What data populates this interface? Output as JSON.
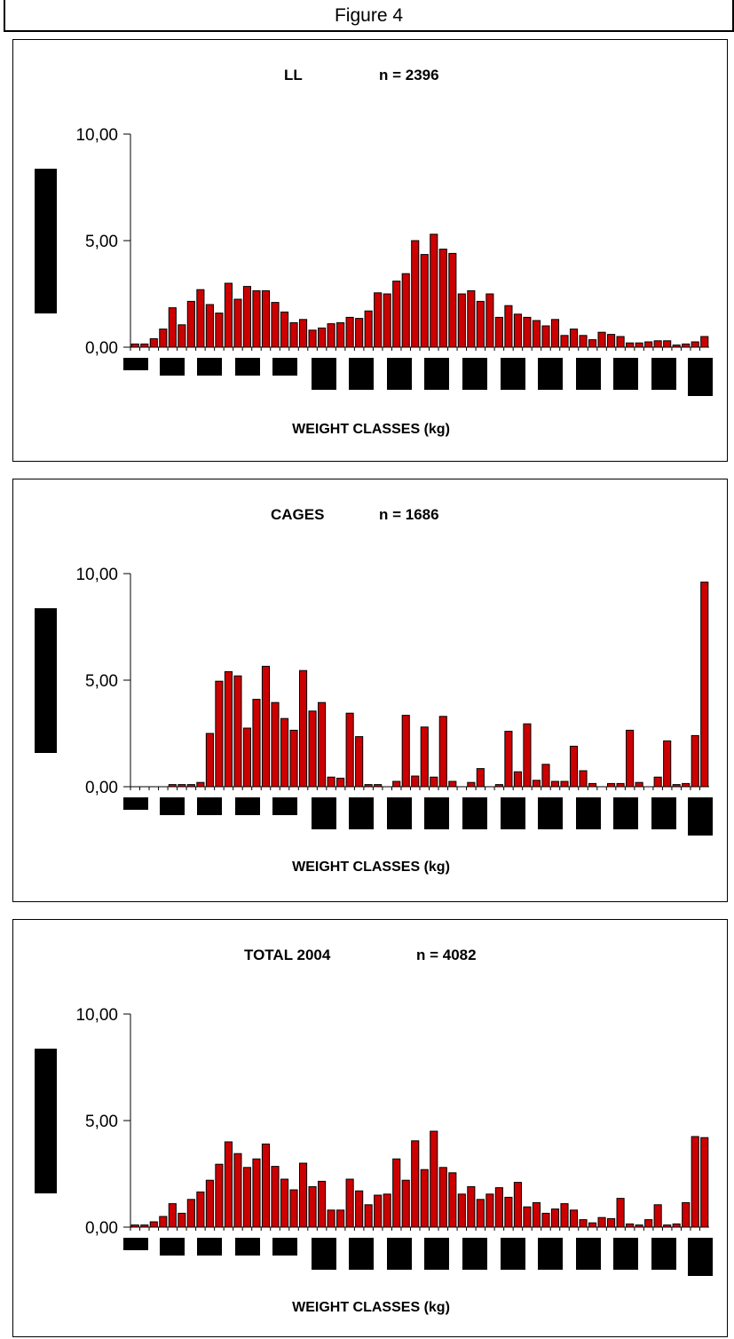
{
  "figure_title": "Figure 4",
  "colors": {
    "bar_fill": "#cc0000",
    "bar_stroke": "#000000",
    "redaction": "#000000"
  },
  "chart_data": [
    {
      "type": "bar",
      "title": "LL",
      "subtitle": "n = 2396",
      "xlabel": "WEIGHT CLASSES (kg)",
      "ylabel": "",
      "ylim": [
        0,
        10
      ],
      "yticks": [
        "10,00",
        "5,00",
        "0,00"
      ],
      "grid": false,
      "values": [
        0.15,
        0.15,
        0.4,
        0.85,
        1.85,
        1.05,
        2.15,
        2.7,
        2.0,
        1.6,
        3.0,
        2.25,
        2.85,
        2.65,
        2.65,
        2.1,
        1.65,
        1.15,
        1.3,
        0.8,
        0.9,
        1.1,
        1.15,
        1.4,
        1.35,
        1.7,
        2.55,
        2.5,
        3.1,
        3.45,
        5.0,
        4.35,
        5.3,
        4.6,
        4.4,
        2.5,
        2.65,
        2.15,
        2.5,
        1.4,
        1.95,
        1.55,
        1.4,
        1.25,
        1.0,
        1.3,
        0.55,
        0.85,
        0.55,
        0.35,
        0.7,
        0.6,
        0.5,
        0.2,
        0.2,
        0.25,
        0.3,
        0.3,
        0.1,
        0.15,
        0.25,
        0.5
      ]
    },
    {
      "type": "bar",
      "title": "CAGES",
      "subtitle": "n = 1686",
      "xlabel": "WEIGHT CLASSES (kg)",
      "ylabel": "",
      "ylim": [
        0,
        10
      ],
      "yticks": [
        "10,00",
        "5,00",
        "0,00"
      ],
      "grid": false,
      "values": [
        0,
        0,
        0,
        0,
        0.1,
        0.1,
        0.1,
        0.2,
        2.5,
        4.95,
        5.4,
        5.2,
        2.75,
        4.1,
        5.65,
        3.95,
        3.2,
        2.65,
        5.45,
        3.55,
        3.95,
        0.45,
        0.4,
        3.45,
        2.35,
        0.1,
        0.1,
        0,
        0.25,
        3.35,
        0.5,
        2.8,
        0.45,
        3.3,
        0.25,
        0,
        0.2,
        0.85,
        0,
        0.1,
        2.6,
        0.7,
        2.95,
        0.3,
        1.05,
        0.25,
        0.25,
        1.9,
        0.75,
        0.15,
        0,
        0.15,
        0.15,
        2.65,
        0.2,
        0,
        0.45,
        2.15,
        0.1,
        0.15,
        2.4,
        9.6
      ]
    },
    {
      "type": "bar",
      "title": "TOTAL 2004",
      "subtitle": "n = 4082",
      "xlabel": "WEIGHT CLASSES (kg)",
      "ylabel": "",
      "ylim": [
        0,
        10
      ],
      "yticks": [
        "10,00",
        "5,00",
        "0,00"
      ],
      "grid": false,
      "values": [
        0.1,
        0.1,
        0.25,
        0.5,
        1.1,
        0.65,
        1.3,
        1.65,
        2.2,
        2.95,
        4.0,
        3.45,
        2.8,
        3.2,
        3.9,
        2.85,
        2.25,
        1.75,
        3.0,
        1.9,
        2.15,
        0.8,
        0.8,
        2.25,
        1.7,
        1.05,
        1.5,
        1.55,
        3.2,
        2.2,
        4.05,
        2.7,
        4.5,
        2.8,
        2.55,
        1.55,
        1.9,
        1.3,
        1.55,
        1.85,
        1.4,
        2.1,
        0.95,
        1.15,
        0.65,
        0.85,
        1.1,
        0.8,
        0.35,
        0.2,
        0.45,
        0.4,
        1.35,
        0.15,
        0.1,
        0.35,
        1.05,
        0.1,
        0.15,
        1.15,
        4.25,
        4.2
      ]
    }
  ]
}
